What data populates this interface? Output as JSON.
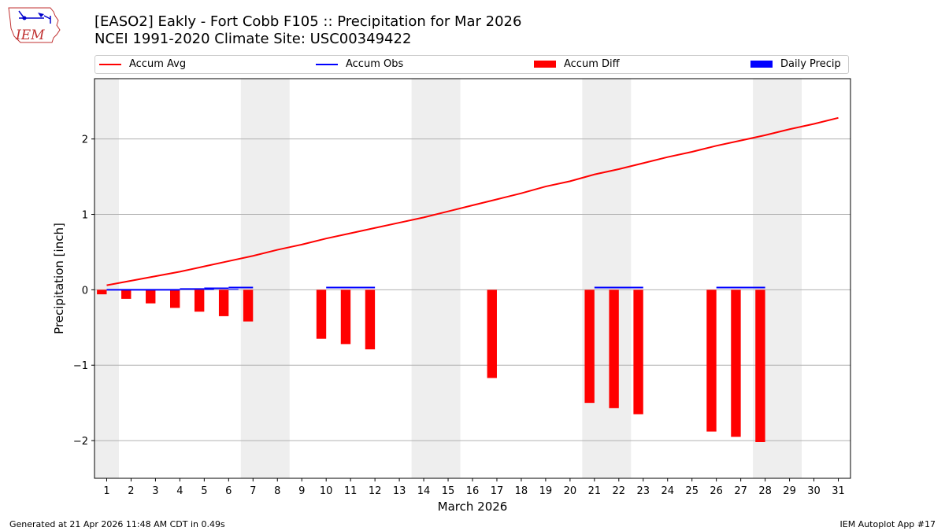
{
  "logo": {
    "text": "IEM"
  },
  "header": {
    "title_line1": "[EASO2] Eakly - Fort Cobb F105 :: Precipitation for Mar 2026",
    "title_line2": "NCEI 1991-2020 Climate Site: USC00349422"
  },
  "legend": {
    "accum_avg": "Accum Avg",
    "accum_obs": "Accum Obs",
    "accum_diff": "Accum Diff",
    "daily_precip": "Daily Precip"
  },
  "colors": {
    "accum_avg": "#ff0000",
    "accum_obs": "#0000ff",
    "accum_diff": "#ff0000",
    "daily_precip": "#0000ff",
    "weekend_shade": "#eeeeee",
    "grid": "#b0b0b0"
  },
  "chart_data": {
    "type": "bar+line",
    "title": "[EASO2] Eakly - Fort Cobb F105 :: Precipitation for Mar 2026",
    "subtitle": "NCEI 1991-2020 Climate Site: USC00349422",
    "xlabel": "March 2026",
    "ylabel": "Precipitation [inch]",
    "xlim": [
      0.5,
      31.5
    ],
    "ylim": [
      -2.5,
      2.8
    ],
    "yticks": [
      2,
      1,
      0,
      -1,
      -2
    ],
    "ytick_labels": [
      "2",
      "1",
      "0",
      "−1",
      "−2"
    ],
    "x_ticks": [
      1,
      2,
      3,
      4,
      5,
      6,
      7,
      8,
      9,
      10,
      11,
      12,
      13,
      14,
      15,
      16,
      17,
      18,
      19,
      20,
      21,
      22,
      23,
      24,
      25,
      26,
      27,
      28,
      29,
      30,
      31
    ],
    "grid": "horizontal",
    "weekend_shading": [
      [
        0.5,
        1.5
      ],
      [
        6.5,
        8.5
      ],
      [
        13.5,
        15.5
      ],
      [
        20.5,
        22.5
      ],
      [
        27.5,
        29.5
      ]
    ],
    "accum_avg": {
      "days": [
        1,
        2,
        3,
        4,
        5,
        6,
        7,
        8,
        9,
        10,
        11,
        12,
        13,
        14,
        15,
        16,
        17,
        18,
        19,
        20,
        21,
        22,
        23,
        24,
        25,
        26,
        27,
        28,
        29,
        30,
        31
      ],
      "values": [
        0.06,
        0.12,
        0.18,
        0.24,
        0.31,
        0.38,
        0.45,
        0.53,
        0.6,
        0.68,
        0.75,
        0.82,
        0.89,
        0.96,
        1.04,
        1.12,
        1.2,
        1.28,
        1.37,
        1.44,
        1.53,
        1.6,
        1.68,
        1.76,
        1.83,
        1.91,
        1.98,
        2.05,
        2.13,
        2.2,
        2.28
      ]
    },
    "accum_obs": {
      "segments": [
        {
          "start": 1,
          "end": 4,
          "value": 0.0
        },
        {
          "start": 4,
          "end": 5,
          "value": 0.01
        },
        {
          "start": 5,
          "end": 6,
          "value": 0.02
        },
        {
          "start": 6,
          "end": 7,
          "value": 0.03
        },
        {
          "start": 10,
          "end": 12,
          "value": 0.03
        },
        {
          "start": 21,
          "end": 23,
          "value": 0.03
        },
        {
          "start": 26,
          "end": 28,
          "value": 0.03
        }
      ]
    },
    "daily_precip": {
      "days": [
        5,
        6
      ],
      "values": [
        0.01,
        0.01
      ]
    },
    "accum_diff": {
      "days": [
        1,
        2,
        3,
        4,
        5,
        6,
        7,
        10,
        11,
        12,
        17,
        21,
        22,
        23,
        26,
        27,
        28
      ],
      "values": [
        -0.06,
        -0.12,
        -0.18,
        -0.24,
        -0.29,
        -0.35,
        -0.42,
        -0.65,
        -0.72,
        -0.79,
        -1.17,
        -1.5,
        -1.57,
        -1.65,
        -1.88,
        -1.95,
        -2.02
      ]
    }
  },
  "footer": {
    "generated": "Generated at 21 Apr 2026 11:48 AM CDT in 0.49s",
    "app": "IEM Autoplot App #17"
  }
}
